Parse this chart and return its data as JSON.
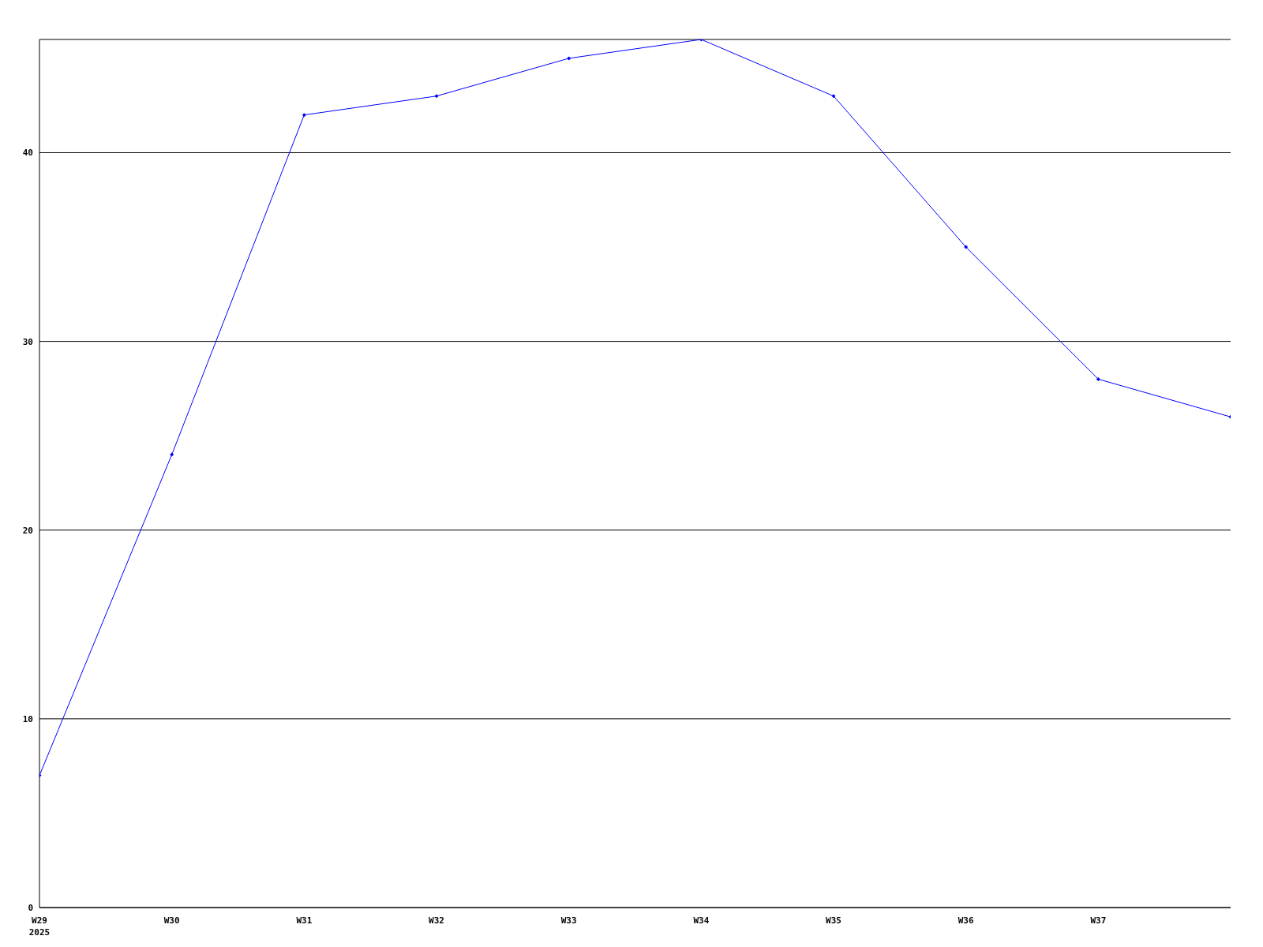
{
  "chart_data": {
    "type": "line",
    "categories": [
      "W29\n2025",
      "W30",
      "W31",
      "W32",
      "W33",
      "W34",
      "W35",
      "W36",
      "W37",
      null
    ],
    "series": [
      {
        "color": "#0000ff",
        "values": [
          7,
          24,
          42,
          43,
          45,
          46,
          43,
          35,
          28,
          26
        ]
      }
    ],
    "ylim": [
      0,
      46
    ],
    "yticks": [
      0,
      10,
      20,
      30,
      40
    ],
    "grid": "y",
    "marker": "diamond",
    "line_style": "solid"
  }
}
